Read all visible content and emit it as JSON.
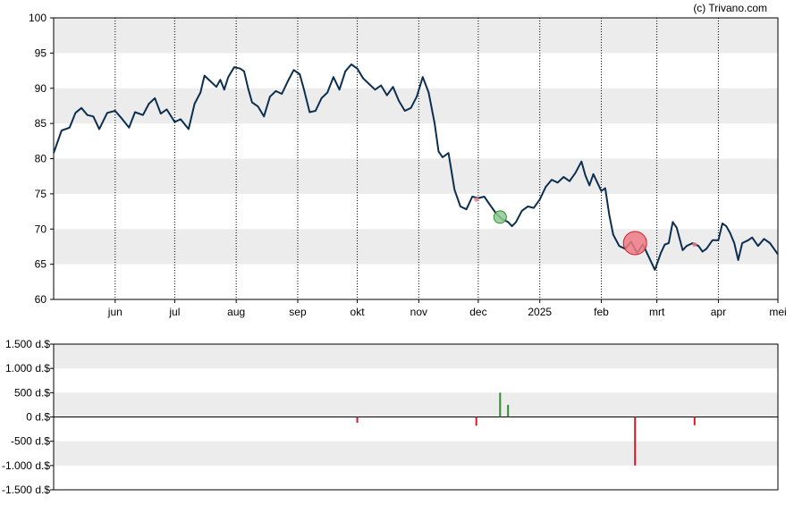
{
  "copyright": "(c) Trivano.com",
  "colors": {
    "price_line": "#0d2f4f",
    "band": "#ececec",
    "buy": "#2e8b2e",
    "sell": "#d11a2a",
    "buy_marker": "#8fc98f",
    "sell_marker": "#f07a82"
  },
  "chart_data": [
    {
      "type": "line",
      "title": "",
      "ylim": [
        60,
        100
      ],
      "y_ticks": [
        "100",
        "95",
        "90",
        "85",
        "80",
        "75",
        "70",
        "65",
        "60"
      ],
      "x_ticks": [
        "jun",
        "jul",
        "aug",
        "sep",
        "okt",
        "nov",
        "dec",
        "2025",
        "feb",
        "mrt",
        "apr",
        "mei"
      ],
      "x_tick_dates": [
        "2024-06-01",
        "2024-07-01",
        "2024-08-01",
        "2024-09-01",
        "2024-10-01",
        "2024-11-01",
        "2024-12-01",
        "2025-01-01",
        "2025-02-01",
        "2025-03-01",
        "2025-04-01",
        "2025-05-01"
      ],
      "xlim": [
        "2024-05-01",
        "2025-05-01"
      ],
      "grid": "vertical dotted lines at month ticks, alternating horizontal bands",
      "series": [
        {
          "values": [
            [
              "2024-05-01",
              80.8
            ],
            [
              "2024-05-05",
              84.0
            ],
            [
              "2024-05-09",
              84.4
            ],
            [
              "2024-05-12",
              86.5
            ],
            [
              "2024-05-15",
              87.2
            ],
            [
              "2024-05-18",
              86.2
            ],
            [
              "2024-05-21",
              86.0
            ],
            [
              "2024-05-24",
              84.2
            ],
            [
              "2024-05-28",
              86.5
            ],
            [
              "2024-06-01",
              86.8
            ],
            [
              "2024-06-04",
              85.8
            ],
            [
              "2024-06-08",
              84.4
            ],
            [
              "2024-06-11",
              86.6
            ],
            [
              "2024-06-15",
              86.2
            ],
            [
              "2024-06-18",
              87.8
            ],
            [
              "2024-06-21",
              88.6
            ],
            [
              "2024-06-24",
              86.4
            ],
            [
              "2024-06-27",
              87.0
            ],
            [
              "2024-07-01",
              85.2
            ],
            [
              "2024-07-04",
              85.6
            ],
            [
              "2024-07-08",
              84.2
            ],
            [
              "2024-07-11",
              87.8
            ],
            [
              "2024-07-14",
              89.4
            ],
            [
              "2024-07-16",
              91.8
            ],
            [
              "2024-07-19",
              91.0
            ],
            [
              "2024-07-22",
              90.2
            ],
            [
              "2024-07-24",
              91.2
            ],
            [
              "2024-07-26",
              89.8
            ],
            [
              "2024-07-28",
              91.6
            ],
            [
              "2024-07-31",
              93.0
            ],
            [
              "2024-08-03",
              92.8
            ],
            [
              "2024-08-05",
              92.4
            ],
            [
              "2024-08-07",
              90.0
            ],
            [
              "2024-08-09",
              88.0
            ],
            [
              "2024-08-12",
              87.4
            ],
            [
              "2024-08-15",
              86.0
            ],
            [
              "2024-08-18",
              88.8
            ],
            [
              "2024-08-21",
              89.6
            ],
            [
              "2024-08-24",
              89.2
            ],
            [
              "2024-08-27",
              91.0
            ],
            [
              "2024-08-30",
              92.6
            ],
            [
              "2024-09-02",
              92.0
            ],
            [
              "2024-09-04",
              90.0
            ],
            [
              "2024-09-07",
              86.6
            ],
            [
              "2024-09-10",
              86.8
            ],
            [
              "2024-09-13",
              88.6
            ],
            [
              "2024-09-16",
              89.4
            ],
            [
              "2024-09-19",
              91.6
            ],
            [
              "2024-09-22",
              89.8
            ],
            [
              "2024-09-25",
              92.4
            ],
            [
              "2024-09-28",
              93.4
            ],
            [
              "2024-10-01",
              92.8
            ],
            [
              "2024-10-04",
              91.4
            ],
            [
              "2024-10-07",
              90.6
            ],
            [
              "2024-10-10",
              89.8
            ],
            [
              "2024-10-13",
              90.4
            ],
            [
              "2024-10-16",
              89.0
            ],
            [
              "2024-10-19",
              90.2
            ],
            [
              "2024-10-22",
              88.2
            ],
            [
              "2024-10-25",
              86.8
            ],
            [
              "2024-10-28",
              87.2
            ],
            [
              "2024-10-31",
              88.8
            ],
            [
              "2024-11-03",
              91.6
            ],
            [
              "2024-11-06",
              89.4
            ],
            [
              "2024-11-09",
              85.0
            ],
            [
              "2024-11-11",
              81.0
            ],
            [
              "2024-11-13",
              80.2
            ],
            [
              "2024-11-16",
              80.8
            ],
            [
              "2024-11-19",
              75.6
            ],
            [
              "2024-11-22",
              73.2
            ],
            [
              "2024-11-25",
              72.8
            ],
            [
              "2024-11-28",
              74.6
            ],
            [
              "2024-12-01",
              74.4
            ],
            [
              "2024-12-04",
              74.6
            ],
            [
              "2024-12-07",
              73.4
            ],
            [
              "2024-12-10",
              72.2
            ],
            [
              "2024-12-13",
              71.4
            ],
            [
              "2024-12-16",
              71.0
            ],
            [
              "2024-12-18",
              70.4
            ],
            [
              "2024-12-20",
              71.0
            ],
            [
              "2024-12-23",
              72.6
            ],
            [
              "2024-12-26",
              73.2
            ],
            [
              "2024-12-29",
              73.0
            ],
            [
              "2025-01-01",
              74.2
            ],
            [
              "2025-01-04",
              76.0
            ],
            [
              "2025-01-07",
              77.0
            ],
            [
              "2025-01-10",
              76.6
            ],
            [
              "2025-01-13",
              77.4
            ],
            [
              "2025-01-16",
              76.8
            ],
            [
              "2025-01-19",
              78.0
            ],
            [
              "2025-01-22",
              79.6
            ],
            [
              "2025-01-24",
              77.6
            ],
            [
              "2025-01-26",
              76.2
            ],
            [
              "2025-01-28",
              77.8
            ],
            [
              "2025-01-30",
              76.6
            ],
            [
              "2025-02-01",
              75.4
            ],
            [
              "2025-02-03",
              75.8
            ],
            [
              "2025-02-05",
              72.0
            ],
            [
              "2025-02-07",
              69.2
            ],
            [
              "2025-02-10",
              67.6
            ],
            [
              "2025-02-13",
              67.2
            ],
            [
              "2025-02-16",
              68.2
            ],
            [
              "2025-02-19",
              66.6
            ],
            [
              "2025-02-22",
              67.8
            ],
            [
              "2025-02-25",
              66.0
            ],
            [
              "2025-02-28",
              64.2
            ],
            [
              "2025-03-03",
              66.6
            ],
            [
              "2025-03-05",
              67.8
            ],
            [
              "2025-03-07",
              68.0
            ],
            [
              "2025-03-09",
              71.0
            ],
            [
              "2025-03-11",
              70.2
            ],
            [
              "2025-03-14",
              67.0
            ],
            [
              "2025-03-16",
              67.6
            ],
            [
              "2025-03-19",
              68.0
            ],
            [
              "2025-03-22",
              67.6
            ],
            [
              "2025-03-24",
              66.8
            ],
            [
              "2025-03-26",
              67.2
            ],
            [
              "2025-03-29",
              68.4
            ],
            [
              "2025-04-01",
              68.4
            ],
            [
              "2025-04-03",
              70.8
            ],
            [
              "2025-04-05",
              70.4
            ],
            [
              "2025-04-07",
              69.4
            ],
            [
              "2025-04-09",
              68.0
            ],
            [
              "2025-04-11",
              65.6
            ],
            [
              "2025-04-13",
              68.0
            ],
            [
              "2025-04-16",
              68.4
            ],
            [
              "2025-04-18",
              68.8
            ],
            [
              "2025-04-21",
              67.6
            ],
            [
              "2025-04-24",
              68.6
            ],
            [
              "2025-04-27",
              68.0
            ],
            [
              "2025-05-01",
              66.4
            ]
          ]
        }
      ],
      "markers": [
        {
          "date": "2024-12-12",
          "value": 71.7,
          "kind": "buy",
          "size": "medium"
        },
        {
          "date": "2025-02-18",
          "value": 68.0,
          "kind": "sell",
          "size": "large"
        },
        {
          "date": "2024-11-30",
          "value": 74.2,
          "kind": "sell",
          "size": "small"
        },
        {
          "date": "2025-03-20",
          "value": 67.8,
          "kind": "sell",
          "size": "small"
        }
      ]
    },
    {
      "type": "bar",
      "title": "",
      "ylim": [
        -1500,
        1500
      ],
      "y_ticks": [
        "1.500 d.$",
        "1.000 d.$",
        "500 d.$",
        "0 d.$",
        "-500 d.$",
        "-1.000 d.$",
        "-1.500 d.$"
      ],
      "xlim": [
        "2024-05-01",
        "2025-05-01"
      ],
      "values": [
        {
          "date": "2024-10-01",
          "value": -120
        },
        {
          "date": "2024-11-30",
          "value": -180
        },
        {
          "date": "2024-12-12",
          "value": 500
        },
        {
          "date": "2024-12-16",
          "value": 250
        },
        {
          "date": "2025-02-18",
          "value": -1000
        },
        {
          "date": "2025-03-20",
          "value": -170
        }
      ]
    }
  ]
}
